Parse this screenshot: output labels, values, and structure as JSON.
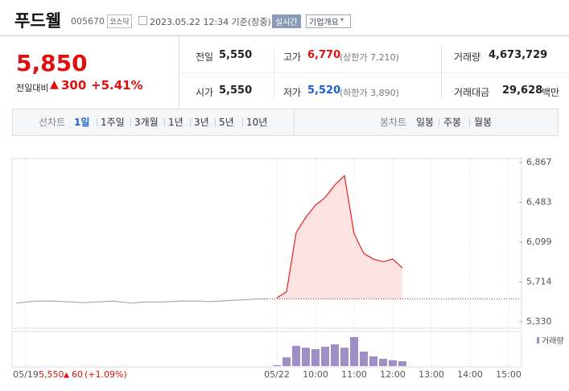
{
  "header": {
    "name": "푸드웰",
    "code": "005670",
    "market": "코스닥",
    "time": "2023.05.22 12:34 기준(장중)",
    "realtime": "실시간",
    "company": "기업개요"
  },
  "price": {
    "current": "5,850",
    "change_label": "전일대비",
    "change": "300",
    "rate": "+5.41%"
  },
  "summary": {
    "rows": [
      [
        {
          "label": "전일",
          "value": "5,550"
        },
        {
          "label": "고가",
          "value": "6,770",
          "note": "(상한가 7,210)"
        },
        {
          "label": "거래량",
          "value": "4,673,729"
        }
      ],
      [
        {
          "label": "시가",
          "value": "5,550"
        },
        {
          "label": "저가",
          "value": "5,520",
          "note": "(하한가 3,890)"
        },
        {
          "label": "거래대금",
          "value": "29,628",
          "unit": "백만"
        }
      ]
    ]
  },
  "tabs": {
    "line_label": "선차트",
    "line": [
      "1일",
      "1주일",
      "3개월",
      "1년",
      "3년",
      "5년",
      "10년"
    ],
    "candle_label": "봉차트",
    "candle": [
      "일봉",
      "주봉",
      "월봉"
    ]
  },
  "chart_data": {
    "type": "line",
    "categories": [
      null,
      "05/19",
      null,
      null,
      null,
      null,
      null,
      null,
      null,
      null,
      null,
      null,
      null,
      null,
      null,
      null,
      null,
      null,
      null,
      null,
      null,
      null,
      null,
      null,
      null,
      null,
      null,
      "05/22",
      null,
      null,
      null,
      "10:00",
      null,
      null,
      null,
      "11:00",
      null,
      null,
      null,
      "12:00",
      null,
      null,
      null,
      "13:00",
      null,
      null,
      null,
      "14:00",
      null,
      null,
      null,
      "15:00",
      null
    ],
    "series": [
      {
        "color": "#aaaaaa",
        "values": [
          5510,
          5520,
          5530,
          5530,
          5530,
          5525,
          5520,
          5515,
          5520,
          5525,
          5530,
          5520,
          5510,
          5520,
          5520,
          5520,
          5525,
          5530,
          5530,
          5530,
          5525,
          5530,
          5535,
          5540,
          5545,
          5550,
          5550,
          null,
          null,
          null,
          null,
          null,
          null,
          null,
          null,
          null,
          null,
          null,
          null,
          null,
          null,
          null,
          null,
          null,
          null,
          null,
          null,
          null,
          null,
          null,
          null,
          null,
          null
        ]
      },
      {
        "color": "#e22222",
        "values": [
          null,
          null,
          null,
          null,
          null,
          null,
          null,
          null,
          null,
          null,
          null,
          null,
          null,
          null,
          null,
          null,
          null,
          null,
          null,
          null,
          null,
          null,
          null,
          null,
          null,
          null,
          null,
          5560,
          5620,
          6190,
          6340,
          6455,
          6530,
          6650,
          6740,
          6180,
          5990,
          5935,
          5910,
          5935,
          5850,
          null,
          null,
          null,
          null,
          null,
          null,
          null,
          null,
          null,
          null,
          null,
          null
        ]
      }
    ],
    "baseline": 5550,
    "ylim": [
      5330,
      6867
    ],
    "yticks": [
      {
        "value": 6867,
        "label": "6,867"
      },
      {
        "value": 6483,
        "label": "6,483"
      },
      {
        "value": 6099,
        "label": "6,099"
      },
      {
        "value": 5714,
        "label": "5,714"
      },
      {
        "value": 5330,
        "label": "5,330"
      }
    ],
    "volume": {
      "name": "거래량",
      "color": "#9d8fc6",
      "values": [
        null,
        null,
        null,
        null,
        null,
        null,
        null,
        null,
        null,
        null,
        null,
        null,
        null,
        null,
        null,
        null,
        null,
        null,
        null,
        null,
        null,
        null,
        null,
        null,
        null,
        null,
        null,
        20000,
        180000,
        420000,
        380000,
        350000,
        400000,
        450000,
        380000,
        600000,
        300000,
        200000,
        150000,
        120000,
        100000,
        null,
        null,
        null,
        null,
        null,
        null,
        null,
        null,
        null,
        null,
        null,
        null
      ]
    },
    "footer": {
      "price": "5,550",
      "change": "60",
      "rate": "(+1.09%)"
    }
  }
}
